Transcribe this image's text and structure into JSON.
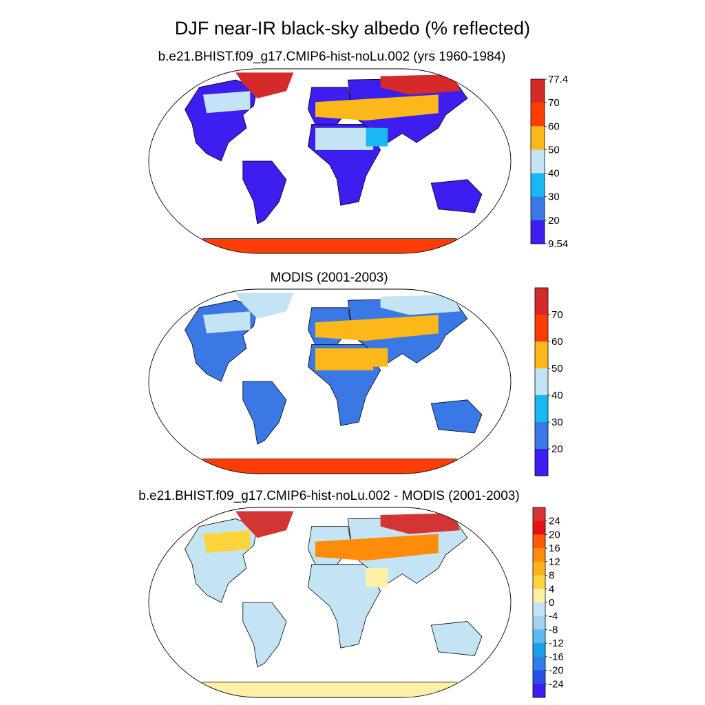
{
  "figure": {
    "title": "DJF near-IR black-sky albedo (% reflected)"
  },
  "chart_data": [
    {
      "type": "heatmap",
      "title": "b.e21.BHIST.f09_g17.CMIP6-hist-noLu.002 (yrs 1960-1984)",
      "projection": "Robinson",
      "colorbar": {
        "colors": [
          "#3c1ef0",
          "#3a78e6",
          "#1ab8f2",
          "#c4e4f4",
          "#fbb818",
          "#fe3c05",
          "#d42a2a"
        ],
        "tick_labels": [
          "77.4",
          "70",
          "60",
          "50",
          "40",
          "30",
          "20",
          "9.54"
        ],
        "range": [
          9.54,
          77.4
        ]
      },
      "land_fill": "#3c1ef0",
      "features": [
        {
          "region": "Antarctica",
          "color": "#fe3c05"
        },
        {
          "region": "Greenland",
          "color": "#d42a2a"
        },
        {
          "region": "Arctic Siberia",
          "color": "#d42a2a"
        },
        {
          "region": "Eurasia mid-latitudes",
          "color": "#fbb818"
        },
        {
          "region": "Sahara",
          "color": "#c4e4f4"
        },
        {
          "region": "Canada",
          "color": "#c4e4f4"
        },
        {
          "region": "Arabia",
          "color": "#1ab8f2"
        }
      ]
    },
    {
      "type": "heatmap",
      "title": "MODIS (2001-2003)",
      "projection": "Robinson",
      "colorbar": {
        "colors": [
          "#3c1ef0",
          "#3a78e6",
          "#1ab8f2",
          "#c4e4f4",
          "#fbb818",
          "#fe3c05",
          "#d42a2a"
        ],
        "tick_labels": [
          "70",
          "60",
          "50",
          "40",
          "30",
          "20"
        ]
      },
      "land_fill": "#3a78e6",
      "features": [
        {
          "region": "Antarctica",
          "color": "#fe3c05"
        },
        {
          "region": "Greenland",
          "color": "#c4e4f4"
        },
        {
          "region": "Arctic Siberia",
          "color": "#c4e4f4"
        },
        {
          "region": "Eurasia mid-latitudes",
          "color": "#fbb818"
        },
        {
          "region": "Sahara",
          "color": "#fbb818"
        },
        {
          "region": "Canada",
          "color": "#c4e4f4"
        },
        {
          "region": "Arabia",
          "color": "#fbb818"
        }
      ]
    },
    {
      "type": "heatmap",
      "title": "b.e21.BHIST.f09_g17.CMIP6-hist-noLu.002 - MODIS (2001-2003)",
      "projection": "Robinson",
      "colorbar": {
        "colors": [
          "#3c1ef0",
          "#2a4fe8",
          "#2f7fe8",
          "#1a9ee8",
          "#5cb8f0",
          "#9fd3f0",
          "#c4e4f4",
          "#fff0a8",
          "#fed43c",
          "#fcb21c",
          "#fd8c0a",
          "#fb5a08",
          "#e81010",
          "#d43434"
        ],
        "tick_labels": [
          "24",
          "20",
          "16",
          "12",
          "8",
          "4",
          "0",
          "-4",
          "-8",
          "-12",
          "-16",
          "-20",
          "-24"
        ]
      },
      "land_fill": "#c4e4f4",
      "features": [
        {
          "region": "Antarctica",
          "color": "#fff0a8"
        },
        {
          "region": "Greenland",
          "color": "#d43434"
        },
        {
          "region": "Arctic Siberia",
          "color": "#d43434"
        },
        {
          "region": "Eurasia mid-latitudes",
          "color": "#fd8c0a"
        },
        {
          "region": "Sahara",
          "color": "#c4e4f4"
        },
        {
          "region": "Canada",
          "color": "#fed43c"
        },
        {
          "region": "Arabia",
          "color": "#fff0a8"
        }
      ]
    }
  ]
}
